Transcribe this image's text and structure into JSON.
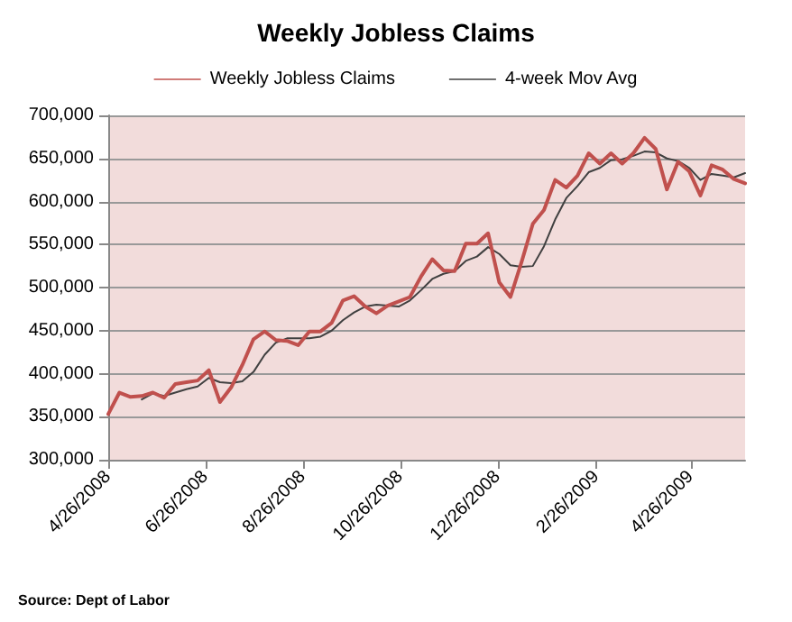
{
  "chart_data": {
    "type": "line",
    "title": "Weekly Jobless Claims",
    "annotations": [
      "Source: Dept of Labor"
    ],
    "x": [
      "2008-04-26",
      "2008-05-03",
      "2008-05-10",
      "2008-05-17",
      "2008-05-24",
      "2008-05-31",
      "2008-06-07",
      "2008-06-14",
      "2008-06-21",
      "2008-06-28",
      "2008-07-05",
      "2008-07-12",
      "2008-07-19",
      "2008-07-26",
      "2008-08-02",
      "2008-08-09",
      "2008-08-16",
      "2008-08-23",
      "2008-08-30",
      "2008-09-06",
      "2008-09-13",
      "2008-09-20",
      "2008-09-27",
      "2008-10-04",
      "2008-10-11",
      "2008-10-18",
      "2008-10-25",
      "2008-11-01",
      "2008-11-08",
      "2008-11-15",
      "2008-11-22",
      "2008-11-29",
      "2008-12-06",
      "2008-12-13",
      "2008-12-20",
      "2008-12-27",
      "2009-01-03",
      "2009-01-10",
      "2009-01-17",
      "2009-01-24",
      "2009-01-31",
      "2009-02-07",
      "2009-02-14",
      "2009-02-21",
      "2009-02-28",
      "2009-03-07",
      "2009-03-14",
      "2009-03-21",
      "2009-03-28",
      "2009-04-04",
      "2009-04-11",
      "2009-04-18",
      "2009-04-25",
      "2009-05-02",
      "2009-05-09",
      "2009-05-16",
      "2009-05-23",
      "2009-05-30"
    ],
    "series": [
      {
        "name": "Weekly Jobless Claims",
        "color": "#c0504d",
        "values": [
          353000,
          378000,
          373000,
          374000,
          378000,
          372000,
          388000,
          390000,
          392000,
          404000,
          367000,
          384000,
          410000,
          440000,
          449000,
          439000,
          438000,
          433000,
          449000,
          449000,
          459000,
          485000,
          490000,
          478000,
          470000,
          479000,
          484000,
          489000,
          513000,
          533000,
          520000,
          519000,
          551000,
          551000,
          563000,
          506000,
          489000,
          530000,
          574000,
          590000,
          625000,
          616000,
          630000,
          656000,
          644000,
          656000,
          644000,
          656000,
          674000,
          661000,
          614000,
          646000,
          635000,
          607000,
          642000,
          637000,
          626000,
          621000
        ]
      },
      {
        "name": "4-week Mov Avg",
        "color": "#404040",
        "values": [
          null,
          null,
          null,
          370000,
          377000,
          374000,
          378000,
          382000,
          385000,
          395000,
          390000,
          389000,
          391000,
          402000,
          422000,
          436000,
          441000,
          441000,
          441000,
          443000,
          450000,
          462000,
          471000,
          478000,
          480000,
          479000,
          478000,
          485000,
          497000,
          510000,
          516000,
          519000,
          531000,
          536000,
          547000,
          539000,
          526000,
          524000,
          525000,
          548000,
          579000,
          604000,
          618000,
          634000,
          639000,
          648000,
          649000,
          653000,
          658000,
          657000,
          650000,
          647000,
          639000,
          625000,
          632000,
          630000,
          628000,
          633000
        ]
      }
    ],
    "xlim": [
      "2008-04-26",
      "2009-05-30"
    ],
    "xticks": [
      {
        "value": "2008-04-26",
        "label": "4/26/2008"
      },
      {
        "value": "2008-06-26",
        "label": "6/26/2008"
      },
      {
        "value": "2008-08-26",
        "label": "8/26/2008"
      },
      {
        "value": "2008-10-26",
        "label": "10/26/2008"
      },
      {
        "value": "2008-12-26",
        "label": "12/26/2008"
      },
      {
        "value": "2009-02-26",
        "label": "2/26/2009"
      },
      {
        "value": "2009-04-26",
        "label": "4/26/2009"
      }
    ],
    "ylim": [
      300000,
      700000
    ],
    "yticks": [
      {
        "value": 300000,
        "label": "300,000"
      },
      {
        "value": 350000,
        "label": "350,000"
      },
      {
        "value": 400000,
        "label": "400,000"
      },
      {
        "value": 450000,
        "label": "450,000"
      },
      {
        "value": 500000,
        "label": "500,000"
      },
      {
        "value": 550000,
        "label": "550,000"
      },
      {
        "value": 600000,
        "label": "600,000"
      },
      {
        "value": 650000,
        "label": "650,000"
      },
      {
        "value": 700000,
        "label": "700,000"
      }
    ],
    "grid": "y",
    "legend": "top",
    "marker": "none",
    "line_style": "solid"
  }
}
